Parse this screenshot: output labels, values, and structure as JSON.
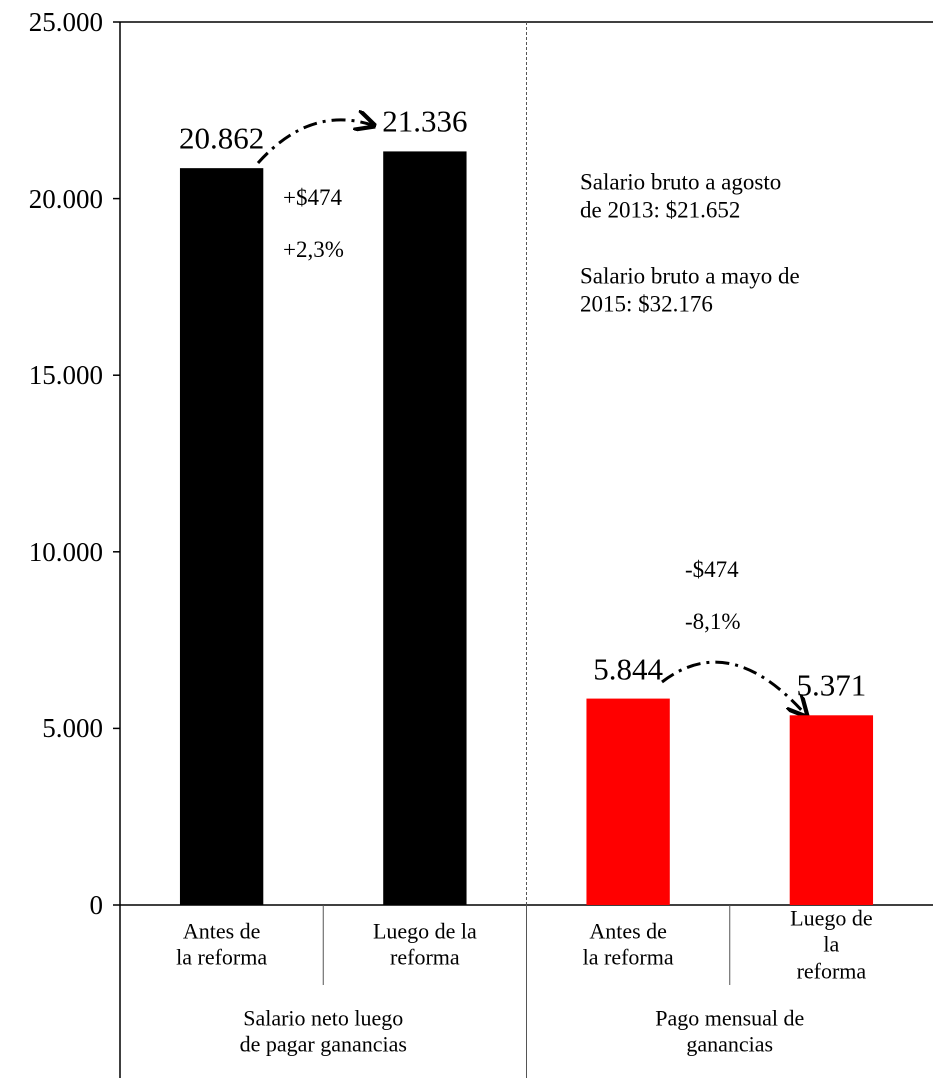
{
  "chart_data": {
    "type": "bar",
    "categories": [
      "Antes de\nla reforma",
      "Luego de la\nreforma",
      "Antes de\nla reforma",
      "Luego de la\nreforma"
    ],
    "groups": [
      "Salario neto luego\nde pagar ganancias",
      "Pago mensual de ganancias"
    ],
    "values": [
      20862,
      21336,
      5844,
      5371
    ],
    "value_labels": [
      "20.862",
      "21.336",
      "5.844",
      "5.371"
    ],
    "colors": [
      "#000000",
      "#000000",
      "#ff0000",
      "#ff0000"
    ],
    "ylim": [
      0,
      25000
    ],
    "yticks": [
      0,
      {
        "value": 5000,
        "label": "5.000"
      },
      {
        "value": 10000,
        "label": "10.000"
      },
      {
        "value": 15000,
        "label": "15.000"
      },
      {
        "value": 20000,
        "label": "20.000"
      },
      {
        "value": 25000,
        "label": "25.000"
      }
    ],
    "annotations": [
      "+$474",
      "+2,3%",
      "Salario bruto a agosto\nde 2013: $21.652",
      "Salario bruto a mayo de\n2015: $32.176",
      "-$474",
      "-8,1%"
    ]
  }
}
